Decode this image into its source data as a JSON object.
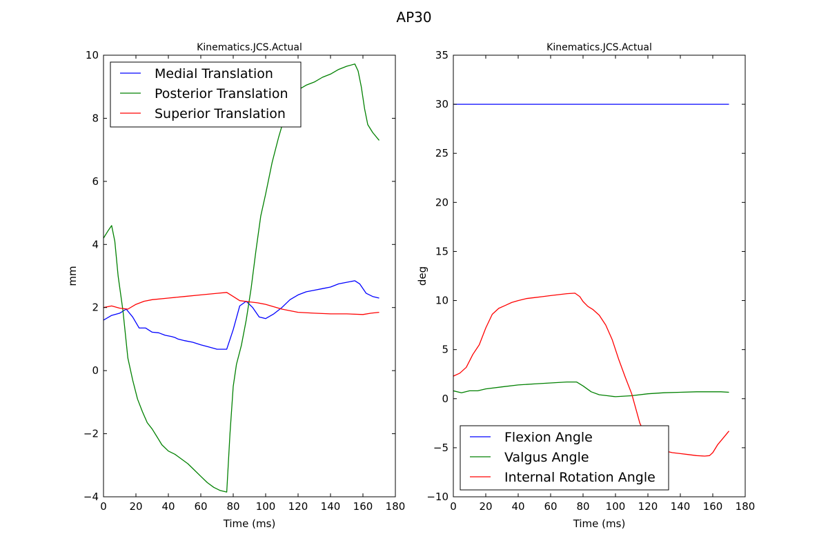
{
  "figure": {
    "title": "AP30"
  },
  "chart_data": [
    {
      "type": "line",
      "title": "Kinematics.JCS.Actual",
      "xlabel": "Time (ms)",
      "ylabel": "mm",
      "xlim": [
        0,
        180
      ],
      "ylim": [
        -4,
        10
      ],
      "xticks": [
        0,
        20,
        40,
        60,
        80,
        100,
        120,
        140,
        160,
        180
      ],
      "yticks": [
        -4,
        -2,
        0,
        2,
        4,
        6,
        8,
        10
      ],
      "ytick_labels": [
        "−4",
        "−2",
        "0",
        "2",
        "4",
        "6",
        "8",
        "10"
      ],
      "grid": false,
      "legend_position": "top-left",
      "series": [
        {
          "name": "Medial Translation",
          "color": "#0000ff",
          "x": [
            0,
            5,
            10,
            14,
            18,
            22,
            26,
            30,
            34,
            38,
            42,
            44,
            46,
            50,
            55,
            60,
            65,
            70,
            76,
            80,
            84,
            88,
            92,
            96,
            100,
            105,
            110,
            115,
            120,
            125,
            130,
            135,
            140,
            145,
            150,
            155,
            158,
            162,
            166,
            170
          ],
          "y": [
            1.6,
            1.75,
            1.82,
            1.95,
            1.7,
            1.35,
            1.35,
            1.22,
            1.2,
            1.12,
            1.08,
            1.05,
            1.0,
            0.95,
            0.9,
            0.82,
            0.75,
            0.68,
            0.68,
            1.3,
            2.05,
            2.2,
            2.0,
            1.7,
            1.65,
            1.8,
            2.0,
            2.25,
            2.4,
            2.5,
            2.55,
            2.6,
            2.65,
            2.75,
            2.8,
            2.85,
            2.75,
            2.45,
            2.35,
            2.3
          ]
        },
        {
          "name": "Posterior Translation",
          "color": "#008000",
          "x": [
            0,
            3,
            5,
            7,
            9,
            12,
            15,
            18,
            21,
            24,
            27,
            30,
            33,
            36,
            40,
            44,
            48,
            52,
            56,
            60,
            64,
            68,
            72,
            76,
            78,
            80,
            82,
            85,
            88,
            91,
            94,
            97,
            100,
            104,
            108,
            112,
            116,
            120,
            125,
            130,
            135,
            140,
            145,
            150,
            155,
            157,
            159,
            161,
            163,
            166,
            170
          ],
          "y": [
            4.2,
            4.45,
            4.6,
            4.1,
            3.0,
            1.9,
            0.4,
            -0.3,
            -0.9,
            -1.3,
            -1.65,
            -1.85,
            -2.1,
            -2.35,
            -2.55,
            -2.65,
            -2.8,
            -2.95,
            -3.15,
            -3.35,
            -3.55,
            -3.7,
            -3.8,
            -3.85,
            -2.0,
            -0.5,
            0.2,
            0.8,
            1.6,
            2.6,
            3.8,
            4.9,
            5.6,
            6.6,
            7.4,
            8.1,
            8.6,
            8.9,
            9.05,
            9.15,
            9.3,
            9.4,
            9.55,
            9.65,
            9.72,
            9.5,
            9.0,
            8.3,
            7.8,
            7.55,
            7.3
          ]
        },
        {
          "name": "Superior Translation",
          "color": "#ff0000",
          "x": [
            0,
            5,
            10,
            15,
            20,
            25,
            30,
            40,
            50,
            60,
            70,
            76,
            80,
            84,
            90,
            95,
            100,
            110,
            120,
            130,
            140,
            150,
            160,
            165,
            170
          ],
          "y": [
            2.0,
            2.05,
            1.98,
            1.95,
            2.1,
            2.2,
            2.25,
            2.3,
            2.35,
            2.4,
            2.45,
            2.48,
            2.35,
            2.22,
            2.18,
            2.15,
            2.1,
            1.95,
            1.85,
            1.82,
            1.8,
            1.8,
            1.78,
            1.82,
            1.85
          ]
        }
      ]
    },
    {
      "type": "line",
      "title": "Kinematics.JCS.Actual",
      "xlabel": "Time (ms)",
      "ylabel": "deg",
      "xlim": [
        0,
        180
      ],
      "ylim": [
        -10,
        35
      ],
      "xticks": [
        0,
        20,
        40,
        60,
        80,
        100,
        120,
        140,
        160,
        180
      ],
      "yticks": [
        -10,
        -5,
        0,
        5,
        10,
        15,
        20,
        25,
        30,
        35
      ],
      "ytick_labels": [
        "−10",
        "−5",
        "0",
        "5",
        "10",
        "15",
        "20",
        "25",
        "30",
        "35"
      ],
      "grid": false,
      "legend_position": "bottom-left",
      "series": [
        {
          "name": "Flexion Angle",
          "color": "#0000ff",
          "x": [
            0,
            170
          ],
          "y": [
            30,
            30
          ]
        },
        {
          "name": "Valgus Angle",
          "color": "#008000",
          "x": [
            0,
            5,
            10,
            15,
            20,
            30,
            40,
            50,
            60,
            70,
            76,
            80,
            85,
            90,
            95,
            100,
            110,
            120,
            130,
            140,
            150,
            160,
            165,
            170
          ],
          "y": [
            0.8,
            0.6,
            0.8,
            0.8,
            1.0,
            1.2,
            1.4,
            1.5,
            1.6,
            1.7,
            1.7,
            1.3,
            0.7,
            0.4,
            0.3,
            0.2,
            0.3,
            0.5,
            0.6,
            0.65,
            0.7,
            0.7,
            0.7,
            0.65
          ]
        },
        {
          "name": "Internal Rotation Angle",
          "color": "#ff0000",
          "x": [
            0,
            4,
            8,
            12,
            16,
            20,
            24,
            28,
            32,
            36,
            40,
            45,
            50,
            55,
            60,
            65,
            70,
            75,
            78,
            80,
            83,
            86,
            90,
            94,
            98,
            102,
            106,
            110,
            115,
            120,
            125,
            130,
            135,
            140,
            145,
            150,
            155,
            158,
            160,
            163,
            166,
            170
          ],
          "y": [
            2.3,
            2.6,
            3.2,
            4.5,
            5.5,
            7.2,
            8.6,
            9.2,
            9.5,
            9.8,
            10.0,
            10.2,
            10.3,
            10.4,
            10.5,
            10.6,
            10.7,
            10.75,
            10.4,
            9.9,
            9.4,
            9.1,
            8.5,
            7.5,
            6.0,
            4.0,
            2.2,
            0.5,
            -2.5,
            -4.2,
            -5.0,
            -5.3,
            -5.5,
            -5.6,
            -5.7,
            -5.8,
            -5.85,
            -5.8,
            -5.5,
            -4.7,
            -4.1,
            -3.3
          ]
        }
      ]
    }
  ]
}
